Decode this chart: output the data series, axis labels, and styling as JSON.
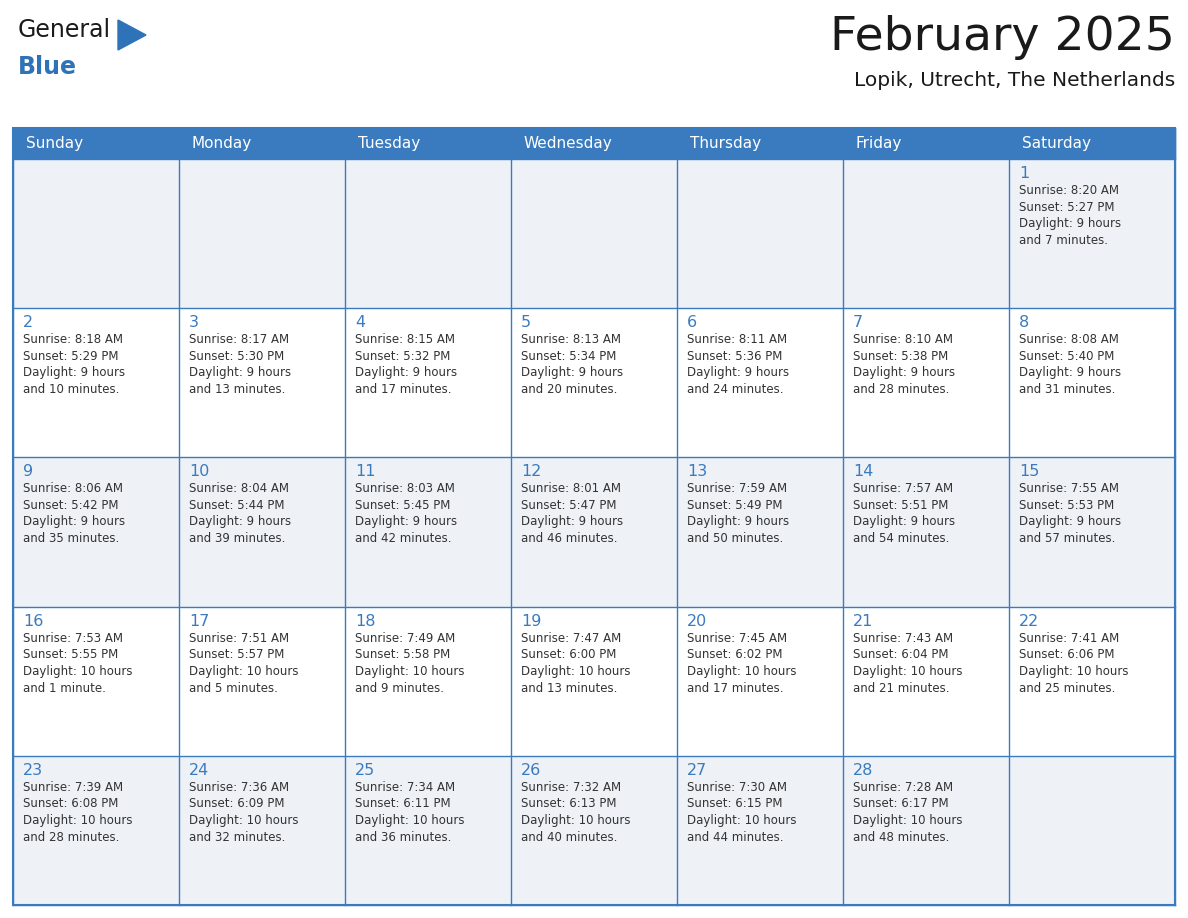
{
  "title": "February 2025",
  "subtitle": "Lopik, Utrecht, The Netherlands",
  "days_of_week": [
    "Sunday",
    "Monday",
    "Tuesday",
    "Wednesday",
    "Thursday",
    "Friday",
    "Saturday"
  ],
  "header_bg": "#3a7bbf",
  "header_text": "#ffffff",
  "row_bg_odd": "#eef2f7",
  "row_bg_even": "#ffffff",
  "border_color": "#3a7bbf",
  "title_color": "#1a1a1a",
  "subtitle_color": "#1a1a1a",
  "day_number_color": "#3a7bbf",
  "cell_text_color": "#333333",
  "logo_general_color": "#1a1a1a",
  "logo_blue_color": "#2e72b8",
  "calendar": [
    [
      {
        "day": "",
        "sunrise": "",
        "sunset": "",
        "daylight": ""
      },
      {
        "day": "",
        "sunrise": "",
        "sunset": "",
        "daylight": ""
      },
      {
        "day": "",
        "sunrise": "",
        "sunset": "",
        "daylight": ""
      },
      {
        "day": "",
        "sunrise": "",
        "sunset": "",
        "daylight": ""
      },
      {
        "day": "",
        "sunrise": "",
        "sunset": "",
        "daylight": ""
      },
      {
        "day": "",
        "sunrise": "",
        "sunset": "",
        "daylight": ""
      },
      {
        "day": "1",
        "sunrise": "8:20 AM",
        "sunset": "5:27 PM",
        "daylight": "9 hours\nand 7 minutes."
      }
    ],
    [
      {
        "day": "2",
        "sunrise": "8:18 AM",
        "sunset": "5:29 PM",
        "daylight": "9 hours\nand 10 minutes."
      },
      {
        "day": "3",
        "sunrise": "8:17 AM",
        "sunset": "5:30 PM",
        "daylight": "9 hours\nand 13 minutes."
      },
      {
        "day": "4",
        "sunrise": "8:15 AM",
        "sunset": "5:32 PM",
        "daylight": "9 hours\nand 17 minutes."
      },
      {
        "day": "5",
        "sunrise": "8:13 AM",
        "sunset": "5:34 PM",
        "daylight": "9 hours\nand 20 minutes."
      },
      {
        "day": "6",
        "sunrise": "8:11 AM",
        "sunset": "5:36 PM",
        "daylight": "9 hours\nand 24 minutes."
      },
      {
        "day": "7",
        "sunrise": "8:10 AM",
        "sunset": "5:38 PM",
        "daylight": "9 hours\nand 28 minutes."
      },
      {
        "day": "8",
        "sunrise": "8:08 AM",
        "sunset": "5:40 PM",
        "daylight": "9 hours\nand 31 minutes."
      }
    ],
    [
      {
        "day": "9",
        "sunrise": "8:06 AM",
        "sunset": "5:42 PM",
        "daylight": "9 hours\nand 35 minutes."
      },
      {
        "day": "10",
        "sunrise": "8:04 AM",
        "sunset": "5:44 PM",
        "daylight": "9 hours\nand 39 minutes."
      },
      {
        "day": "11",
        "sunrise": "8:03 AM",
        "sunset": "5:45 PM",
        "daylight": "9 hours\nand 42 minutes."
      },
      {
        "day": "12",
        "sunrise": "8:01 AM",
        "sunset": "5:47 PM",
        "daylight": "9 hours\nand 46 minutes."
      },
      {
        "day": "13",
        "sunrise": "7:59 AM",
        "sunset": "5:49 PM",
        "daylight": "9 hours\nand 50 minutes."
      },
      {
        "day": "14",
        "sunrise": "7:57 AM",
        "sunset": "5:51 PM",
        "daylight": "9 hours\nand 54 minutes."
      },
      {
        "day": "15",
        "sunrise": "7:55 AM",
        "sunset": "5:53 PM",
        "daylight": "9 hours\nand 57 minutes."
      }
    ],
    [
      {
        "day": "16",
        "sunrise": "7:53 AM",
        "sunset": "5:55 PM",
        "daylight": "10 hours\nand 1 minute."
      },
      {
        "day": "17",
        "sunrise": "7:51 AM",
        "sunset": "5:57 PM",
        "daylight": "10 hours\nand 5 minutes."
      },
      {
        "day": "18",
        "sunrise": "7:49 AM",
        "sunset": "5:58 PM",
        "daylight": "10 hours\nand 9 minutes."
      },
      {
        "day": "19",
        "sunrise": "7:47 AM",
        "sunset": "6:00 PM",
        "daylight": "10 hours\nand 13 minutes."
      },
      {
        "day": "20",
        "sunrise": "7:45 AM",
        "sunset": "6:02 PM",
        "daylight": "10 hours\nand 17 minutes."
      },
      {
        "day": "21",
        "sunrise": "7:43 AM",
        "sunset": "6:04 PM",
        "daylight": "10 hours\nand 21 minutes."
      },
      {
        "day": "22",
        "sunrise": "7:41 AM",
        "sunset": "6:06 PM",
        "daylight": "10 hours\nand 25 minutes."
      }
    ],
    [
      {
        "day": "23",
        "sunrise": "7:39 AM",
        "sunset": "6:08 PM",
        "daylight": "10 hours\nand 28 minutes."
      },
      {
        "day": "24",
        "sunrise": "7:36 AM",
        "sunset": "6:09 PM",
        "daylight": "10 hours\nand 32 minutes."
      },
      {
        "day": "25",
        "sunrise": "7:34 AM",
        "sunset": "6:11 PM",
        "daylight": "10 hours\nand 36 minutes."
      },
      {
        "day": "26",
        "sunrise": "7:32 AM",
        "sunset": "6:13 PM",
        "daylight": "10 hours\nand 40 minutes."
      },
      {
        "day": "27",
        "sunrise": "7:30 AM",
        "sunset": "6:15 PM",
        "daylight": "10 hours\nand 44 minutes."
      },
      {
        "day": "28",
        "sunrise": "7:28 AM",
        "sunset": "6:17 PM",
        "daylight": "10 hours\nand 48 minutes."
      },
      {
        "day": "",
        "sunrise": "",
        "sunset": "",
        "daylight": ""
      }
    ]
  ]
}
